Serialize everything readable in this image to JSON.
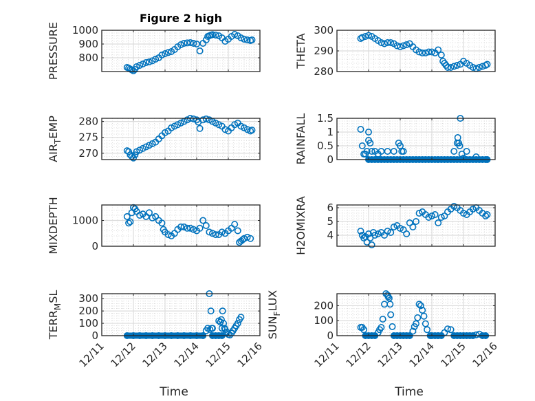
{
  "chart_data": [
    {
      "type": "scatter",
      "title": "Figure 2 high",
      "ylabel": "PRESSURE",
      "ylabel_sub": "",
      "xlabel": "",
      "ylim": [
        700,
        1000
      ],
      "yticks": [
        800,
        900,
        1000
      ],
      "ytick_labels": [
        "800",
        "900",
        "1000"
      ],
      "xticks_days": [
        0,
        1,
        2,
        3,
        4,
        5
      ],
      "xtick_labels": [
        "12/11",
        "12/12",
        "12/13",
        "12/14",
        "12/15",
        "12/16"
      ],
      "show_xtick_labels": false,
      "grid": true,
      "minor_grid": true,
      "x_days": [
        0.8,
        0.85,
        0.9,
        0.95,
        1.0,
        1.05,
        1.1,
        1.2,
        1.3,
        1.4,
        1.5,
        1.6,
        1.7,
        1.8,
        1.9,
        2.0,
        2.1,
        2.2,
        2.3,
        2.4,
        2.5,
        2.6,
        2.7,
        2.8,
        2.9,
        3.0,
        3.1,
        3.2,
        3.3,
        3.35,
        3.4,
        3.45,
        3.5,
        3.6,
        3.7,
        3.8,
        3.9,
        4.0,
        4.1,
        4.2,
        4.3,
        4.4,
        4.5,
        4.6,
        4.7,
        4.75
      ],
      "y": [
        730,
        725,
        718,
        712,
        705,
        715,
        735,
        745,
        755,
        765,
        770,
        778,
        790,
        800,
        820,
        830,
        838,
        845,
        860,
        880,
        895,
        905,
        908,
        910,
        905,
        900,
        850,
        905,
        930,
        955,
        960,
        965,
        968,
        965,
        960,
        945,
        920,
        935,
        955,
        970,
        960,
        945,
        935,
        930,
        925,
        930
      ]
    },
    {
      "type": "scatter",
      "title": "",
      "ylabel": "THETA",
      "ylabel_sub": "",
      "xlabel": "",
      "ylim": [
        280,
        300
      ],
      "yticks": [
        280,
        290,
        300
      ],
      "ytick_labels": [
        "280",
        "290",
        "300"
      ],
      "xticks_days": [
        0,
        1,
        2,
        3,
        4,
        5
      ],
      "xtick_labels": [
        "12/11",
        "12/12",
        "12/13",
        "12/14",
        "12/15",
        "12/16"
      ],
      "show_xtick_labels": false,
      "grid": true,
      "minor_grid": true,
      "x_days": [
        0.75,
        0.8,
        0.9,
        1.0,
        1.1,
        1.2,
        1.3,
        1.4,
        1.5,
        1.6,
        1.7,
        1.8,
        1.9,
        2.0,
        2.1,
        2.2,
        2.3,
        2.4,
        2.5,
        2.6,
        2.7,
        2.8,
        2.9,
        3.0,
        3.1,
        3.2,
        3.3,
        3.35,
        3.4,
        3.45,
        3.5,
        3.6,
        3.7,
        3.8,
        3.9,
        4.0,
        4.1,
        4.2,
        4.3,
        4.4,
        4.5,
        4.6,
        4.7,
        4.75
      ],
      "y": [
        296,
        296.5,
        297,
        297.5,
        297,
        296,
        295,
        294,
        293.5,
        294,
        294,
        293.5,
        292.5,
        292,
        292.5,
        293,
        293.5,
        292,
        290.5,
        289.5,
        289,
        289,
        289.5,
        289.5,
        289,
        290.5,
        288,
        285,
        284,
        283,
        282,
        282,
        282.5,
        283,
        283.5,
        285,
        284,
        283,
        282,
        281.5,
        282,
        282.5,
        283,
        283.5
      ]
    },
    {
      "type": "scatter",
      "title": "",
      "ylabel": "AIR",
      "ylabel_sub": "T",
      "ylabel_rest": "EMP",
      "xlabel": "",
      "ylim": [
        268,
        281
      ],
      "yticks": [
        270,
        275,
        280
      ],
      "ytick_labels": [
        "270",
        "275",
        "280"
      ],
      "xticks_days": [
        0,
        1,
        2,
        3,
        4,
        5
      ],
      "xtick_labels": [
        "12/11",
        "12/12",
        "12/13",
        "12/14",
        "12/15",
        "12/16"
      ],
      "show_xtick_labels": false,
      "grid": true,
      "minor_grid": true,
      "x_days": [
        0.8,
        0.85,
        0.9,
        0.95,
        1.0,
        1.05,
        1.1,
        1.2,
        1.3,
        1.4,
        1.5,
        1.6,
        1.7,
        1.8,
        1.9,
        2.0,
        2.1,
        2.2,
        2.3,
        2.4,
        2.5,
        2.6,
        2.7,
        2.8,
        2.9,
        3.0,
        3.05,
        3.1,
        3.2,
        3.3,
        3.4,
        3.5,
        3.6,
        3.7,
        3.8,
        3.9,
        4.0,
        4.1,
        4.2,
        4.3,
        4.4,
        4.5,
        4.6,
        4.7,
        4.75
      ],
      "y": [
        270.8,
        270.5,
        269.5,
        269,
        268.5,
        269.5,
        270.5,
        271,
        271.5,
        272,
        272.5,
        273,
        273.5,
        274.5,
        275.5,
        276.5,
        277,
        278,
        278.5,
        279,
        279.5,
        280,
        280.5,
        281,
        280.8,
        280.5,
        279.8,
        277.8,
        280.5,
        280.8,
        280.5,
        280,
        279.5,
        279,
        278.5,
        277.5,
        277,
        278,
        279,
        279.5,
        278.5,
        278,
        277.5,
        277,
        277.3
      ]
    },
    {
      "type": "scatter",
      "title": "",
      "ylabel": "RAINFALL",
      "ylabel_sub": "",
      "xlabel": "",
      "ylim": [
        0,
        1.5
      ],
      "yticks": [
        0,
        0.5,
        1,
        1.5
      ],
      "ytick_labels": [
        "0",
        "0.5",
        "1",
        "1.5"
      ],
      "xticks_days": [
        0,
        1,
        2,
        3,
        4,
        5
      ],
      "xtick_labels": [
        "12/11",
        "12/12",
        "12/13",
        "12/14",
        "12/15",
        "12/16"
      ],
      "show_xtick_labels": false,
      "grid": true,
      "minor_grid": true,
      "x_days": [
        0.75,
        0.8,
        0.85,
        0.9,
        0.95,
        1.0,
        1.0,
        1.05,
        1.1,
        1.2,
        1.3,
        1.4,
        1.6,
        1.8,
        1.95,
        2.0,
        2.05,
        2.1,
        3.7,
        3.8,
        3.82,
        3.85,
        3.88,
        3.9,
        3.95,
        4.0,
        4.1,
        4.4,
        1.0,
        1.1,
        1.2,
        1.3,
        1.4,
        1.5,
        1.6,
        1.7,
        1.8,
        1.9,
        2.0,
        2.1,
        2.2,
        2.3,
        2.4,
        2.5,
        2.6,
        2.7,
        2.8,
        2.9,
        3.0,
        3.1,
        3.2,
        3.3,
        3.4,
        3.5,
        3.6,
        3.7,
        3.8,
        3.9,
        4.0,
        4.1,
        4.2,
        4.3,
        4.4,
        4.5,
        4.6,
        4.7,
        4.75
      ],
      "y": [
        1.1,
        0.5,
        0.2,
        0.2,
        0.3,
        1.0,
        0.7,
        0.6,
        0.3,
        0.3,
        0.2,
        0.3,
        0.3,
        0.3,
        0.6,
        0.5,
        0.3,
        0.3,
        0.3,
        0.6,
        0.8,
        0.6,
        0.5,
        1.5,
        0.2,
        0.05,
        0.3,
        0.1,
        0,
        0,
        0,
        0,
        0,
        0,
        0,
        0,
        0,
        0,
        0,
        0,
        0,
        0,
        0,
        0,
        0,
        0,
        0,
        0,
        0,
        0,
        0,
        0,
        0,
        0,
        0,
        0,
        0,
        0,
        0,
        0,
        0,
        0,
        0,
        0,
        0,
        0,
        0
      ]
    },
    {
      "type": "scatter",
      "title": "",
      "ylabel": "MIXDEPTH",
      "ylabel_sub": "",
      "xlabel": "",
      "ylim": [
        0,
        1600
      ],
      "yticks": [
        0,
        1000
      ],
      "ytick_labels": [
        "0",
        "1000"
      ],
      "xticks_days": [
        0,
        1,
        2,
        3,
        4,
        5
      ],
      "xtick_labels": [
        "12/11",
        "12/12",
        "12/13",
        "12/14",
        "12/15",
        "12/16"
      ],
      "show_xtick_labels": false,
      "grid": true,
      "minor_grid": true,
      "x_days": [
        0.8,
        0.85,
        0.9,
        0.95,
        1.0,
        1.05,
        1.1,
        1.2,
        1.3,
        1.4,
        1.5,
        1.6,
        1.7,
        1.8,
        1.9,
        1.95,
        2.0,
        2.1,
        2.2,
        2.3,
        2.4,
        2.5,
        2.6,
        2.7,
        2.8,
        2.9,
        3.0,
        3.1,
        3.2,
        3.3,
        3.4,
        3.5,
        3.6,
        3.7,
        3.8,
        3.9,
        4.0,
        4.1,
        4.2,
        4.3,
        4.35,
        4.4,
        4.45,
        4.5,
        4.6,
        4.7
      ],
      "y": [
        1150,
        900,
        950,
        1300,
        1500,
        1450,
        1350,
        1200,
        1250,
        1150,
        1300,
        1100,
        1150,
        1000,
        900,
        650,
        550,
        450,
        400,
        500,
        650,
        750,
        750,
        700,
        700,
        650,
        600,
        700,
        1000,
        800,
        550,
        500,
        450,
        450,
        550,
        500,
        600,
        700,
        850,
        600,
        150,
        200,
        250,
        300,
        350,
        300
      ]
    },
    {
      "type": "scatter",
      "title": "",
      "ylabel": "H2OMIXRA",
      "ylabel_sub": "",
      "xlabel": "",
      "ylim": [
        3.2,
        6.2
      ],
      "yticks": [
        4,
        5,
        6
      ],
      "ytick_labels": [
        "4",
        "5",
        "6"
      ],
      "xticks_days": [
        0,
        1,
        2,
        3,
        4,
        5
      ],
      "xtick_labels": [
        "12/11",
        "12/12",
        "12/13",
        "12/14",
        "12/15",
        "12/16"
      ],
      "show_xtick_labels": false,
      "grid": true,
      "minor_grid": true,
      "x_days": [
        0.75,
        0.8,
        0.85,
        0.9,
        0.95,
        1.0,
        1.05,
        1.1,
        1.15,
        1.2,
        1.3,
        1.4,
        1.5,
        1.6,
        1.7,
        1.8,
        1.9,
        2.0,
        2.1,
        2.2,
        2.3,
        2.4,
        2.5,
        2.6,
        2.7,
        2.8,
        2.9,
        3.0,
        3.1,
        3.2,
        3.3,
        3.4,
        3.5,
        3.6,
        3.7,
        3.8,
        3.9,
        4.0,
        4.1,
        4.2,
        4.3,
        4.4,
        4.5,
        4.6,
        4.7,
        4.75
      ],
      "y": [
        4.3,
        4.0,
        3.8,
        3.9,
        3.5,
        4.1,
        3.8,
        3.3,
        4.2,
        4.0,
        4.1,
        4.2,
        4.0,
        4.3,
        4.2,
        4.6,
        4.7,
        4.5,
        4.4,
        4.1,
        4.9,
        4.6,
        5.0,
        5.6,
        5.7,
        5.5,
        5.3,
        5.4,
        5.5,
        4.9,
        5.3,
        5.4,
        5.7,
        5.9,
        6.1,
        6.0,
        5.8,
        5.6,
        5.5,
        5.7,
        5.9,
        6.0,
        5.8,
        5.6,
        5.4,
        5.5
      ]
    },
    {
      "type": "scatter",
      "title": "",
      "ylabel": "TERR",
      "ylabel_sub": "M",
      "ylabel_rest": "SL",
      "xlabel": "Time",
      "ylim": [
        0,
        340
      ],
      "yticks": [
        0,
        100,
        200,
        300
      ],
      "ytick_labels": [
        "0",
        "100",
        "200",
        "300"
      ],
      "xticks_days": [
        0,
        1,
        2,
        3,
        4,
        5
      ],
      "xtick_labels": [
        "12/11",
        "12/12",
        "12/13",
        "12/14",
        "12/15",
        "12/16"
      ],
      "show_xtick_labels": true,
      "grid": true,
      "minor_grid": true,
      "x_days": [
        3.3,
        3.35,
        3.4,
        3.42,
        3.45,
        3.48,
        3.5,
        3.7,
        3.75,
        3.78,
        3.8,
        3.82,
        3.85,
        3.88,
        3.9,
        3.95,
        4.0,
        4.05,
        4.1,
        4.15,
        4.2,
        4.25,
        4.3,
        4.35,
        4.4,
        0.8,
        1.0,
        1.2,
        1.4,
        1.6,
        1.8,
        2.0,
        2.2,
        2.4,
        2.6,
        2.8,
        3.0,
        3.2,
        3.5,
        3.6,
        3.7,
        3.8
      ],
      "y": [
        40,
        60,
        340,
        50,
        200,
        60,
        60,
        120,
        110,
        130,
        60,
        200,
        100,
        60,
        50,
        30,
        10,
        5,
        20,
        40,
        60,
        80,
        100,
        130,
        150,
        0,
        0,
        0,
        0,
        0,
        0,
        0,
        0,
        0,
        0,
        0,
        0,
        0,
        0,
        0,
        0,
        0
      ]
    },
    {
      "type": "scatter",
      "title": "",
      "ylabel": "SUN",
      "ylabel_sub": "F",
      "ylabel_rest": "LUX",
      "xlabel": "Time",
      "ylim": [
        0,
        280
      ],
      "yticks": [
        0,
        100,
        200
      ],
      "ytick_labels": [
        "0",
        "100",
        "200"
      ],
      "xticks_days": [
        0,
        1,
        2,
        3,
        4,
        5
      ],
      "xtick_labels": [
        "12/11",
        "12/12",
        "12/13",
        "12/14",
        "12/15",
        "12/16"
      ],
      "show_xtick_labels": true,
      "grid": true,
      "minor_grid": true,
      "x_days": [
        0.75,
        0.8,
        0.85,
        1.3,
        1.35,
        1.4,
        1.45,
        1.5,
        1.55,
        1.6,
        1.62,
        1.65,
        1.68,
        1.7,
        1.75,
        1.8,
        2.4,
        2.45,
        2.5,
        2.55,
        2.6,
        2.65,
        2.7,
        2.75,
        2.8,
        2.85,
        3.4,
        3.5,
        3.6,
        4.4,
        4.5,
        0.9,
        1.0,
        1.1,
        1.2,
        1.9,
        2.0,
        2.1,
        2.2,
        2.3,
        2.95,
        3.0,
        3.1,
        3.2,
        3.3,
        3.7,
        3.8,
        3.9,
        4.0,
        4.1,
        4.2,
        4.3,
        4.6,
        4.7
      ],
      "y": [
        55,
        55,
        40,
        20,
        40,
        55,
        110,
        210,
        280,
        270,
        260,
        250,
        210,
        140,
        60,
        0,
        30,
        60,
        80,
        120,
        210,
        200,
        170,
        130,
        80,
        40,
        20,
        45,
        40,
        5,
        10,
        0,
        0,
        0,
        0,
        0,
        0,
        0,
        0,
        0,
        0,
        0,
        0,
        0,
        0,
        0,
        0,
        0,
        0,
        0,
        0,
        0,
        0,
        0
      ]
    }
  ]
}
